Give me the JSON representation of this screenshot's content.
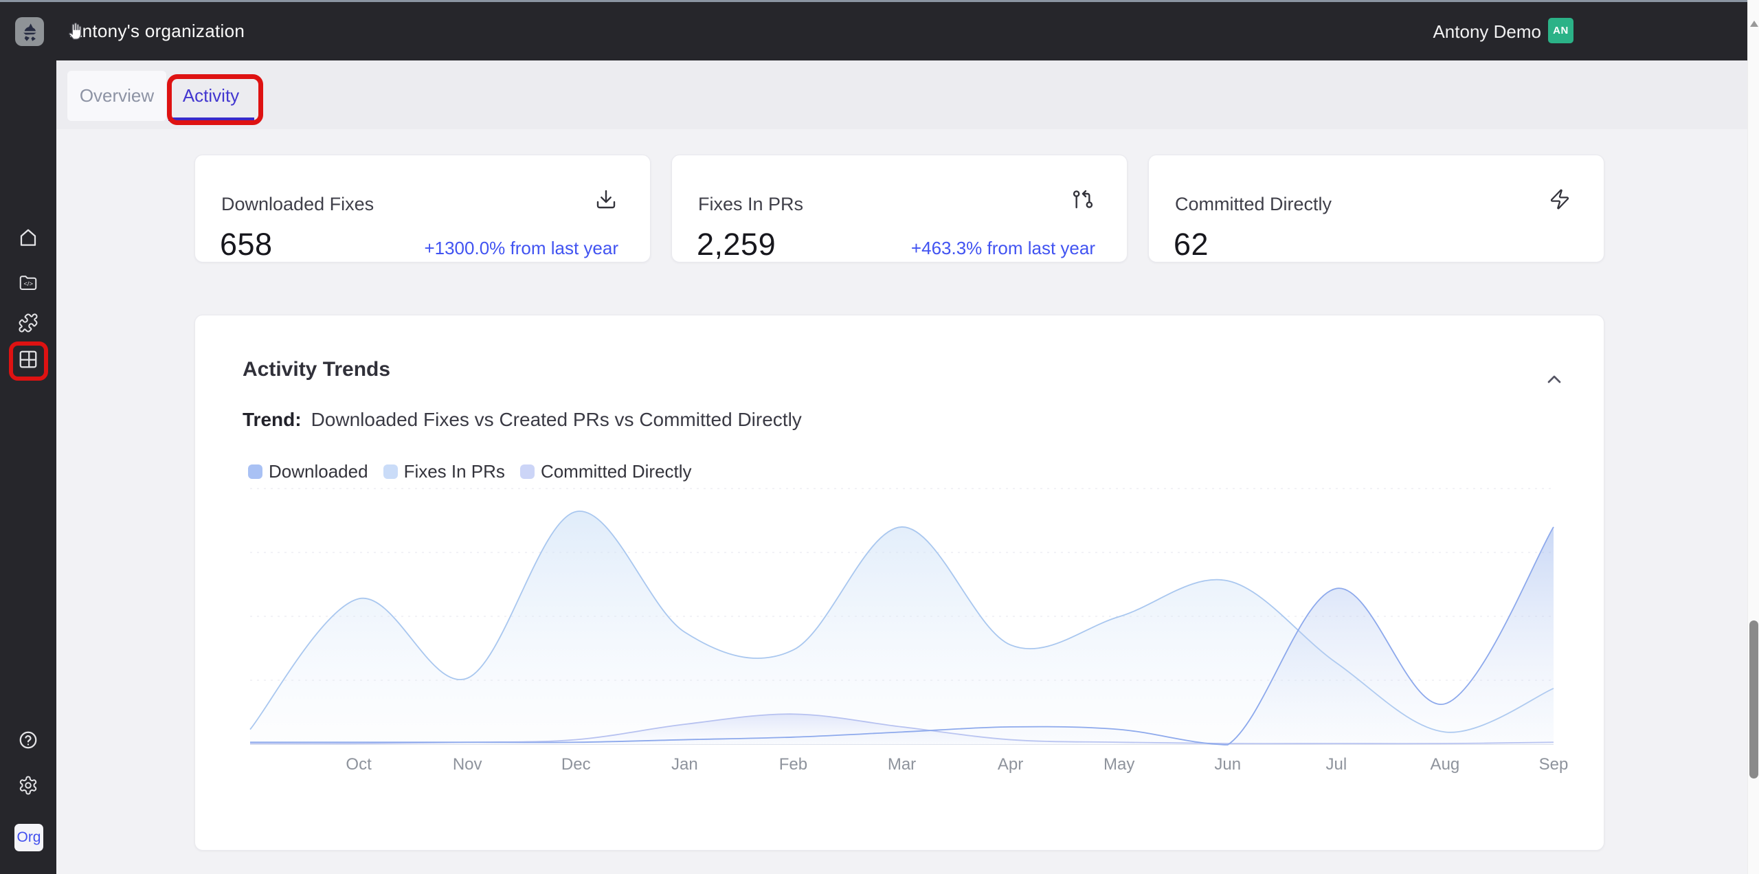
{
  "topbar": {
    "org_name": "Antony's organization",
    "user_name": "Antony Demo",
    "avatar_initials": "AN",
    "avatar_color": "#2bb287"
  },
  "sidebar": {
    "org_badge_label": "Org"
  },
  "tabs": {
    "overview_label": "Overview",
    "activity_label": "Activity"
  },
  "stats": [
    {
      "title": "Downloaded Fixes",
      "value": "658",
      "delta": "+1300.0% from last year",
      "icon": "download"
    },
    {
      "title": "Fixes In PRs",
      "value": "2,259",
      "delta": "+463.3% from last year",
      "icon": "pull-request"
    },
    {
      "title": "Committed Directly",
      "value": "62",
      "delta": "",
      "icon": "lightning"
    }
  ],
  "activity_card": {
    "title": "Activity Trends",
    "trend_label": "Trend:",
    "trend_text": "Downloaded Fixes vs Created PRs vs Committed Directly"
  },
  "chart_data": {
    "type": "area",
    "title": "Activity Trends",
    "categories": [
      "Oct",
      "Nov",
      "Dec",
      "Jan",
      "Feb",
      "Mar",
      "Apr",
      "May",
      "Jun",
      "Jul",
      "Aug",
      "Sep"
    ],
    "ylim": [
      0,
      100
    ],
    "grid": "dashed-horizontal",
    "legend_position": "top",
    "series": [
      {
        "name": "Downloaded",
        "color": "#8da9ec",
        "swatch": "#a9c1f4",
        "fill_top": "rgba(158,184,238,0.55)",
        "fill_bottom": "rgba(220,230,248,0.08)",
        "lead_in": 1,
        "values": [
          1,
          1,
          1,
          2,
          3,
          5,
          7,
          6,
          0,
          61,
          16,
          85
        ]
      },
      {
        "name": "Fixes In PRs",
        "color": "#a9c7ef",
        "swatch": "#cadcf8",
        "fill_top": "rgba(199,221,246,0.55)",
        "fill_bottom": "rgba(232,240,251,0.10)",
        "lead_in": 6,
        "values": [
          57,
          26,
          91,
          44,
          37,
          85,
          39,
          50,
          64,
          32,
          5,
          22
        ]
      },
      {
        "name": "Committed Directly",
        "color": "#b6c1f0",
        "swatch": "#ccd5f7",
        "fill_top": "rgba(199,209,245,0.50)",
        "fill_bottom": "rgba(230,235,250,0.08)",
        "lead_in": 0.5,
        "values": [
          0.5,
          1,
          2,
          8,
          12,
          7,
          2,
          1,
          0.5,
          0.5,
          0.5,
          1
        ]
      }
    ]
  },
  "annotation_color": "#de1212"
}
